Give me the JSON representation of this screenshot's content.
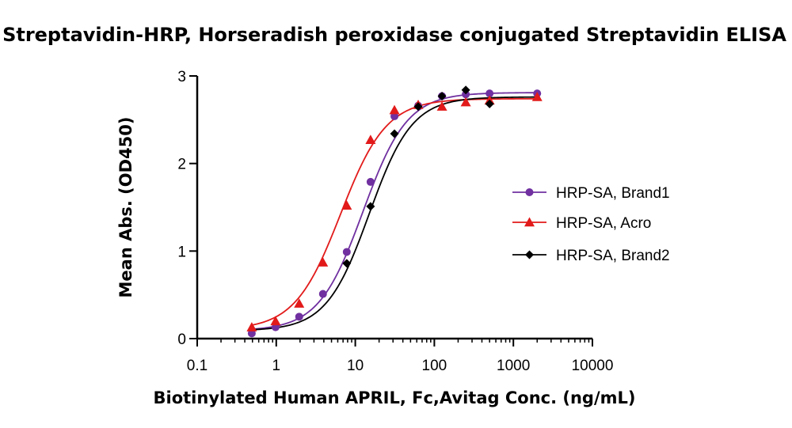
{
  "chart_data": {
    "type": "scatter",
    "title": "Streptavidin-HRP, Horseradish peroxidase conjugated Streptavidin ELISA",
    "xlabel": "Biotinylated Human APRIL, Fc,Avitag Conc. (ng/mL)",
    "ylabel": "Mean Abs. (OD450)",
    "xscale": "log10",
    "xlim": [
      0.1,
      10000
    ],
    "ylim": [
      0,
      3
    ],
    "xticks": [
      0.1,
      1,
      10,
      100,
      1000,
      10000
    ],
    "xtick_labels": [
      "0.1",
      "1",
      "10",
      "100",
      "1000",
      "10000"
    ],
    "yticks": [
      0,
      1,
      2,
      3
    ],
    "ytick_labels": [
      "0",
      "1",
      "2",
      "3"
    ],
    "legend_position": "right",
    "series": [
      {
        "name": "HRP-SA, Brand1",
        "color": "#7030a0",
        "marker": "circle",
        "x": [
          0.49,
          0.98,
          1.95,
          3.9,
          7.8,
          15.6,
          31.3,
          62.5,
          125,
          250,
          500,
          2000
        ],
        "y": [
          0.06,
          0.13,
          0.25,
          0.51,
          0.99,
          1.79,
          2.54,
          2.66,
          2.77,
          2.79,
          2.8,
          2.8
        ],
        "fit": {
          "bottom": 0.09,
          "top": 2.81,
          "ec50": 12.5,
          "hill": 1.55
        }
      },
      {
        "name": "HRP-SA, Acro",
        "color": "#e21a1a",
        "marker": "triangle",
        "x": [
          0.49,
          0.98,
          1.95,
          3.9,
          7.8,
          15.6,
          31.3,
          62.5,
          125,
          250,
          500,
          2000
        ],
        "y": [
          0.13,
          0.2,
          0.4,
          0.87,
          1.52,
          2.27,
          2.61,
          2.67,
          2.65,
          2.7,
          2.72,
          2.76
        ],
        "fit": {
          "bottom": 0.1,
          "top": 2.74,
          "ec50": 6.5,
          "hill": 1.5
        }
      },
      {
        "name": "HRP-SA, Brand2",
        "color": "#000000",
        "marker": "diamond",
        "x": [
          7.8,
          15.6,
          31.3,
          62.5,
          125,
          250,
          500
        ],
        "y": [
          0.86,
          1.51,
          2.34,
          2.65,
          2.77,
          2.84,
          2.68
        ],
        "fit": {
          "bottom": 0.09,
          "top": 2.76,
          "ec50": 15.0,
          "hill": 1.6
        }
      }
    ]
  }
}
